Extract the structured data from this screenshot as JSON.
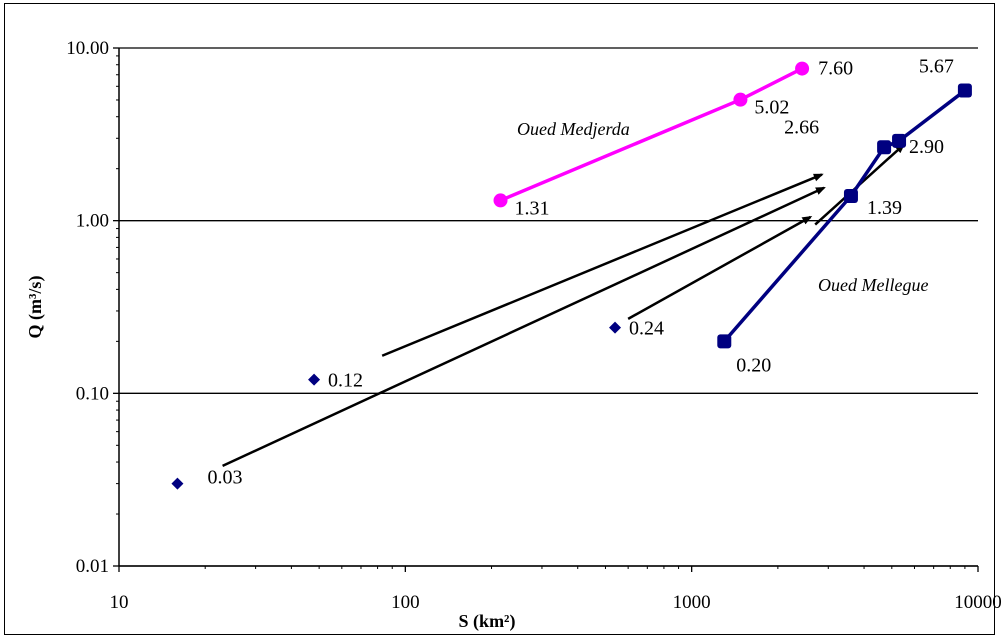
{
  "chart_data": {
    "type": "scatter",
    "x_scale": "log",
    "y_scale": "log",
    "xlim": [
      10,
      10000
    ],
    "ylim": [
      0.01,
      10
    ],
    "xlabel": "S (km²)",
    "ylabel": "Q (m³/s)",
    "x_ticks": [
      "10",
      "100",
      "1000",
      "10000"
    ],
    "y_ticks": [
      "0.01",
      "0.10",
      "1.00",
      "10.00"
    ],
    "grid": "horizontal",
    "colors": {
      "medjerda": "#ff00ff",
      "mellegue": "#000080",
      "points": "#000080",
      "arrows": "#000000"
    },
    "series": [
      {
        "name": "Oued Medjerda",
        "kind": "line",
        "points": [
          {
            "x": 215,
            "y": 1.31,
            "label": "1.31"
          },
          {
            "x": 1480,
            "y": 5.02,
            "label": "5.02"
          },
          {
            "x": 2430,
            "y": 7.6,
            "label": "7.60"
          }
        ]
      },
      {
        "name": "Oued Mellegue",
        "kind": "line",
        "points": [
          {
            "x": 1300,
            "y": 0.2,
            "label": "0.20"
          },
          {
            "x": 3600,
            "y": 1.39,
            "label": "1.39"
          },
          {
            "x": 4700,
            "y": 2.66,
            "label": "2.66"
          },
          {
            "x": 5300,
            "y": 2.9,
            "label": "2.90"
          },
          {
            "x": 9000,
            "y": 5.67,
            "label": "5.67"
          }
        ]
      },
      {
        "kind": "points",
        "points": [
          {
            "x": 16,
            "y": 0.03,
            "label": "0.03"
          },
          {
            "x": 48,
            "y": 0.12,
            "label": "0.12"
          },
          {
            "x": 540,
            "y": 0.24,
            "label": "0.24"
          }
        ]
      }
    ],
    "arrows": [
      {
        "from": [
          23,
          0.038
        ],
        "to": [
          2900,
          1.55
        ]
      },
      {
        "from": [
          83,
          0.165
        ],
        "to": [
          2850,
          1.85
        ]
      },
      {
        "from": [
          600,
          0.27
        ],
        "to": [
          2600,
          1.05
        ]
      },
      {
        "from": [
          2700,
          0.95
        ],
        "to": [
          5500,
          2.75
        ]
      }
    ]
  }
}
